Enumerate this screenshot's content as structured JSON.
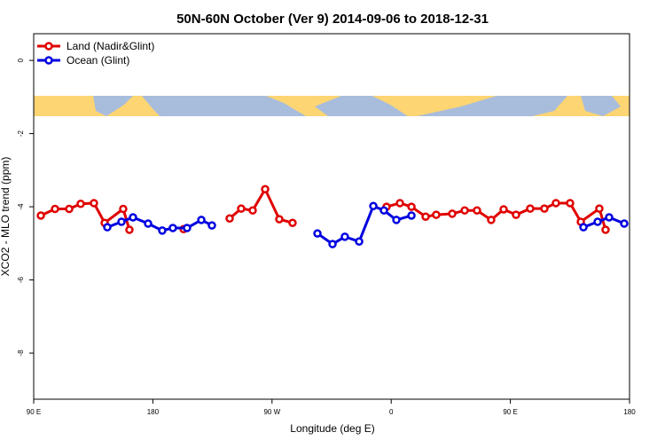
{
  "chart_data": {
    "type": "line",
    "title": "50N-60N October (Ver 9)   2014-09-06 to 2018-12-31",
    "x_label": "Longitude (deg E)",
    "y_label": "XCO2 - MLO trend (ppm)",
    "xlim": [
      90,
      540
    ],
    "xticks": [
      {
        "value": 90,
        "label": "90 E"
      },
      {
        "value": 180,
        "label": "180"
      },
      {
        "value": 270,
        "label": "90 W"
      },
      {
        "value": 360,
        "label": "0"
      },
      {
        "value": 450,
        "label": "90 E"
      },
      {
        "value": 540,
        "label": "180"
      }
    ],
    "ylim": [
      -9.26,
      0.73
    ],
    "yticks": [
      0,
      -2,
      -4,
      -6,
      -8
    ],
    "legend": "topleft",
    "series": [
      {
        "name": "Land (Nadir&Glint)",
        "color": "#e00000",
        "x": [
          95.4,
          106.1,
          116.8,
          125.5,
          135.5,
          143.6,
          157.6,
          162.3,
          null,
          203.2,
          null,
          238.0,
          246.7,
          255.4,
          264.8,
          275.5,
          285.5,
          null,
          356.5,
          366.6,
          375.3,
          386.0,
          394.0,
          406.1,
          415.5,
          424.8,
          435.5,
          444.9,
          454.3,
          465.0,
          475.7,
          484.4,
          495.1,
          503.2,
          517.2,
          521.9
        ],
        "values": [
          -4.24,
          -4.06,
          -4.06,
          -3.92,
          -3.9,
          -4.44,
          -4.06,
          -4.63,
          null,
          -4.61,
          null,
          -4.32,
          -4.05,
          -4.1,
          -3.52,
          -4.34,
          -4.44,
          null,
          -4.0,
          -3.9,
          -4.0,
          -4.27,
          -4.22,
          -4.19,
          -4.1,
          -4.1,
          -4.36,
          -4.07,
          -4.22,
          -4.05,
          -4.05,
          -3.9,
          -3.9,
          -4.41,
          -4.05,
          -4.63
        ]
      },
      {
        "name": "Ocean (Glint)",
        "color": "#0000e0",
        "x": [
          145.6,
          156.3,
          165.0,
          176.4,
          187.1,
          195.1,
          205.8,
          216.6,
          224.6,
          null,
          304.3,
          315.7,
          325.0,
          335.8,
          346.5,
          354.5,
          363.9,
          375.3,
          null,
          505.2,
          515.9,
          524.6,
          536.0
        ],
        "values": [
          -4.56,
          -4.41,
          -4.29,
          -4.46,
          -4.65,
          -4.58,
          -4.58,
          -4.36,
          -4.51,
          null,
          -4.73,
          -5.02,
          -4.82,
          -4.95,
          -3.98,
          -4.1,
          -4.36,
          -4.24,
          null,
          -4.56,
          -4.41,
          -4.29,
          -4.46
        ]
      }
    ]
  }
}
